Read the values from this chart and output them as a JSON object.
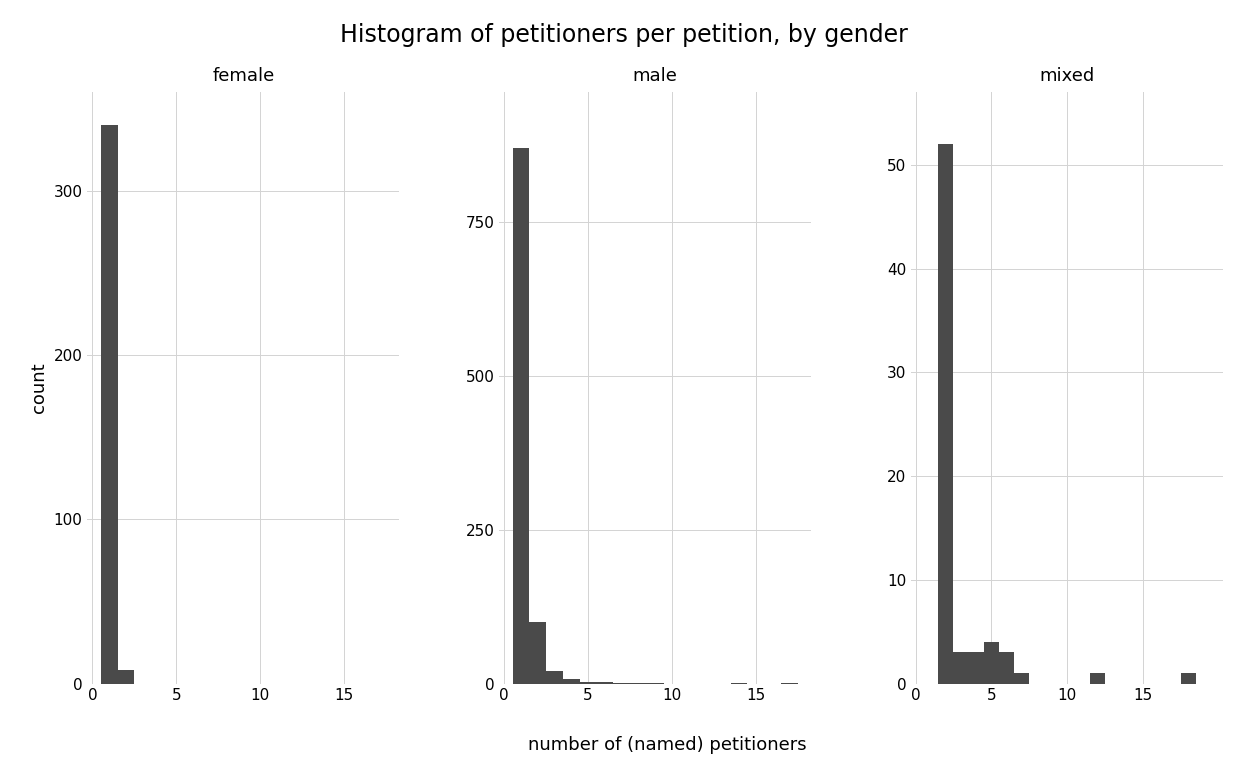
{
  "title": "Histogram of petitioners per petition, by gender",
  "xlabel": "number of (named) petitioners",
  "ylabel": "count",
  "bar_color": "#4a4a4a",
  "background_color": "#ffffff",
  "grid_color": "#d3d3d3",
  "panels": [
    {
      "label": "female",
      "bar_lefts": [
        0.5,
        1.5
      ],
      "counts": [
        340,
        8
      ],
      "xlim": [
        -0.3,
        18.3
      ],
      "xticks": [
        0,
        5,
        10,
        15
      ],
      "ylim": [
        0,
        360
      ],
      "yticks": [
        0,
        100,
        200,
        300
      ]
    },
    {
      "label": "male",
      "bar_lefts": [
        0.5,
        1.5,
        2.5,
        3.5,
        4.5,
        5.5,
        6.5,
        7.5,
        8.5,
        13.5,
        16.5
      ],
      "counts": [
        870,
        100,
        20,
        8,
        3,
        2,
        1,
        1,
        1,
        1,
        1
      ],
      "xlim": [
        -0.3,
        18.3
      ],
      "xticks": [
        0,
        5,
        10,
        15
      ],
      "ylim": [
        0,
        960
      ],
      "yticks": [
        0,
        250,
        500,
        750
      ]
    },
    {
      "label": "mixed",
      "bar_lefts": [
        1.5,
        2.5,
        3.5,
        4.5,
        5.5,
        6.5,
        11.5,
        17.5
      ],
      "counts": [
        52,
        3,
        3,
        4,
        3,
        1,
        1,
        1
      ],
      "xlim": [
        -0.3,
        20.3
      ],
      "xticks": [
        0,
        5,
        10,
        15
      ],
      "ylim": [
        0,
        57
      ],
      "yticks": [
        0,
        10,
        20,
        30,
        40,
        50
      ]
    }
  ],
  "title_fontsize": 17,
  "label_fontsize": 13,
  "tick_fontsize": 11,
  "panel_label_fontsize": 13
}
